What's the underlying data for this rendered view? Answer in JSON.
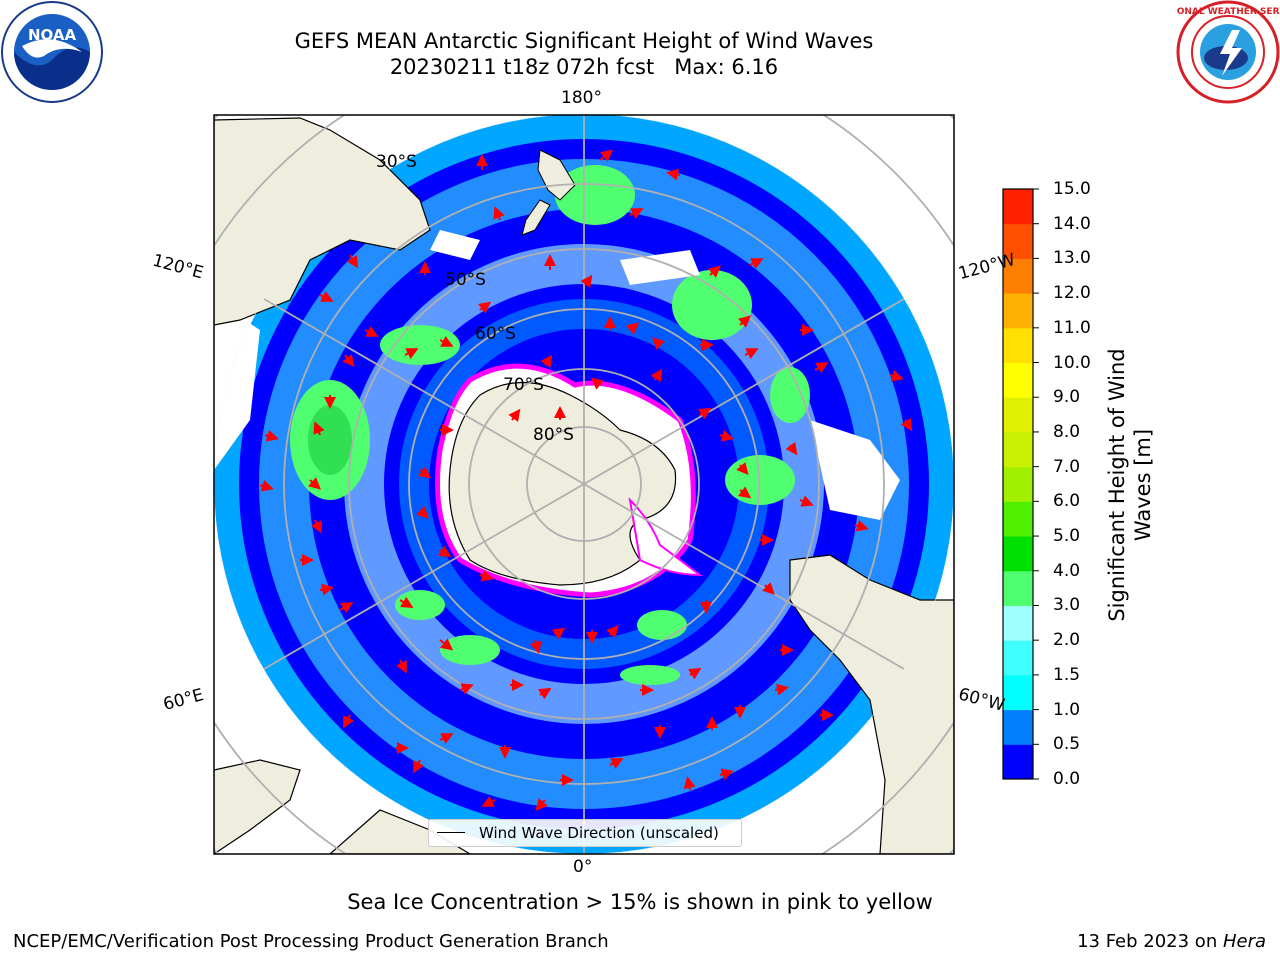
{
  "header": {
    "title_line1": "GEFS MEAN Antarctic Significant Height of Wind Waves",
    "title_line2": "20230211 t18z 072h fcst   Max: 6.16"
  },
  "logos": {
    "left": "NOAA",
    "right": "NATIONAL WEATHER SERVICE"
  },
  "map": {
    "projection": "south-polar-stereographic",
    "lon_labels": {
      "top": "180°",
      "left_upper": "120°E",
      "right_upper": "120°W",
      "left_lower": "60°E",
      "right_lower": "60°W",
      "bottom": "0°"
    },
    "lat_labels": [
      "30°S",
      "50°S",
      "60°S",
      "70°S",
      "80°S"
    ],
    "legend_text": "Wind Wave Direction (unscaled)",
    "colors": {
      "land": "#efedde",
      "open_ocean": "#0000ff",
      "grid": "#b0b0b0",
      "arrow": "#ff0000",
      "ice_edge": "#ff00ff"
    }
  },
  "colorbar": {
    "label": "Significant Height of Wind Waves [m]",
    "ticks": [
      "15.0",
      "14.0",
      "13.0",
      "12.0",
      "11.0",
      "10.0",
      "9.0",
      "8.0",
      "7.0",
      "6.0",
      "5.0",
      "4.0",
      "3.0",
      "2.0",
      "1.5",
      "1.0",
      "0.5",
      "0.0"
    ],
    "colors_bottom_to_top": [
      "#0000ff",
      "#0080ff",
      "#00ffff",
      "#40ffff",
      "#a0ffff",
      "#50ff70",
      "#00e000",
      "#50f000",
      "#a0f000",
      "#c8f000",
      "#e0f000",
      "#ffff00",
      "#ffe000",
      "#ffb000",
      "#ff8000",
      "#ff5000",
      "#ff2000"
    ]
  },
  "notes": {
    "ice": "Sea Ice Concentration > 15% is shown in pink to yellow"
  },
  "footer": {
    "left": "NCEP/EMC/Verification Post Processing Product Generation Branch",
    "right_date": "13 Feb 2023 on ",
    "right_host": "Hera"
  }
}
